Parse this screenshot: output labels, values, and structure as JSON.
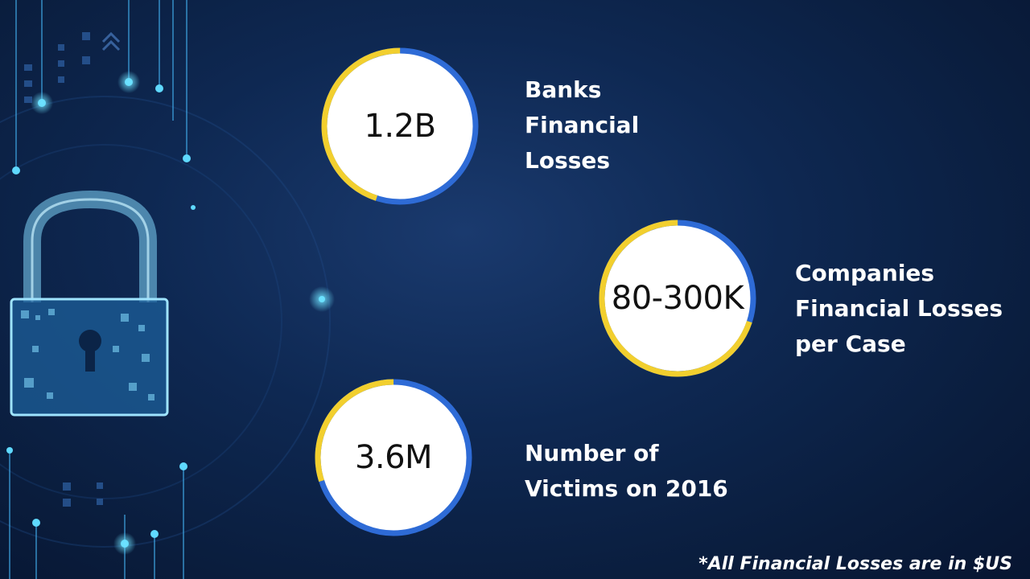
{
  "colors": {
    "ring_blue": "#2e6bd6",
    "ring_yellow": "#f2cf2e",
    "circle_fill": "#ffffff",
    "accent_glow": "#5fd9ff"
  },
  "stats": [
    {
      "value": "1.2B",
      "label_lines": [
        "Banks",
        "Financial",
        "Losses"
      ],
      "yellow_fraction": 0.45
    },
    {
      "value": "80-300K",
      "label_lines": [
        "Companies",
        "Financial Losses",
        "per Case"
      ],
      "yellow_fraction": 0.7
    },
    {
      "value": "3.6M",
      "label_lines": [
        "Number of",
        "Victims on 2016"
      ],
      "yellow_fraction": 0.3
    }
  ],
  "footnote": "*All Financial Losses are in $US",
  "icons": [
    "padlock-icon"
  ]
}
